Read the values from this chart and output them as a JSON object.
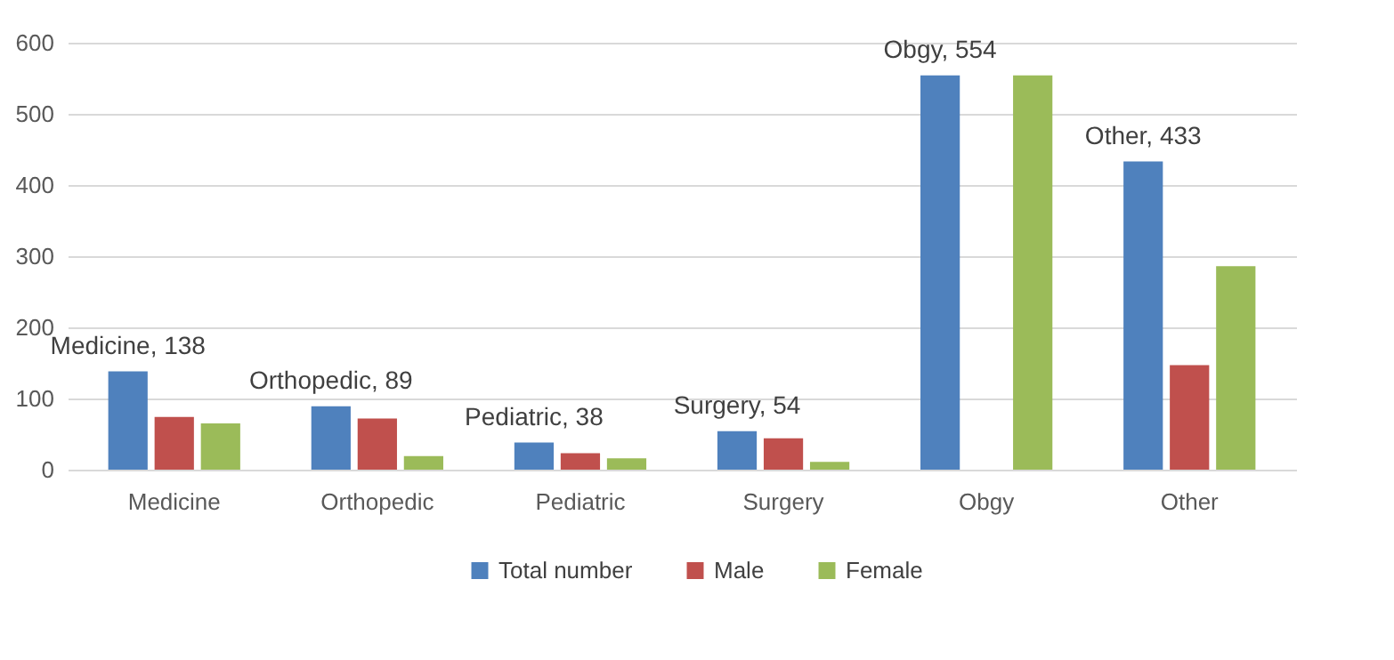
{
  "chart_data": {
    "type": "bar",
    "categories": [
      "Medicine",
      "Orthopedic",
      "Pediatric",
      "Surgery",
      "Obgy",
      "Other"
    ],
    "series": [
      {
        "name": "Total number",
        "color": "#4f81bd",
        "values": [
          138,
          89,
          38,
          54,
          554,
          433
        ],
        "value_labels": [
          "Medicine, 138",
          "Orthopedic, 89",
          "Pediatric, 38",
          "Surgery, 54",
          "Obgy, 554",
          "Other, 433"
        ]
      },
      {
        "name": "Male",
        "color": "#c0504d",
        "values": [
          74,
          72,
          23,
          44,
          0,
          147
        ]
      },
      {
        "name": "Female",
        "color": "#9bbb59",
        "values": [
          65,
          19,
          16,
          11,
          554,
          286
        ]
      }
    ],
    "ylim": [
      0,
      600
    ],
    "yticks": [
      0,
      100,
      200,
      300,
      400,
      500,
      600
    ],
    "grid": "y",
    "legend": "bottom"
  }
}
